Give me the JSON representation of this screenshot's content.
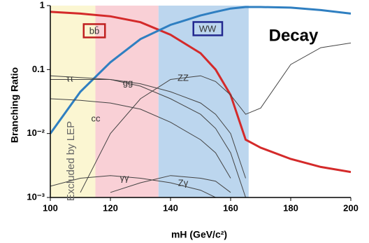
{
  "chart_data": {
    "type": "line",
    "title": "Decay",
    "ylabel": "Branching Ratio",
    "xlabel": "mH (GeV/c²)",
    "annotation": "Excluded by LEP",
    "log_y": true,
    "xlim": [
      100,
      200
    ],
    "xticks": [
      100,
      120,
      140,
      160,
      180,
      200
    ],
    "ylim": [
      0.001,
      1
    ],
    "yticks": [
      {
        "value": 0.001,
        "label": "10⁻³"
      },
      {
        "value": 0.01,
        "label": "10⁻²"
      },
      0.1,
      1
    ],
    "bands": [
      {
        "range": [
          100,
          115
        ],
        "color": "#fbf6d2"
      },
      {
        "range": [
          115,
          136
        ],
        "color": "#f9d0d6"
      },
      {
        "range": [
          136,
          166
        ],
        "color": "#bcd6ee"
      }
    ],
    "x": [
      100,
      110,
      120,
      130,
      140,
      150,
      155,
      160,
      165,
      170,
      180,
      190,
      200
    ],
    "series": [
      {
        "name": "bb̄",
        "color": "#d42a2a",
        "values": [
          0.8,
          0.75,
          0.68,
          0.55,
          0.35,
          0.18,
          0.1,
          0.04,
          0.008,
          0.006,
          0.004,
          0.003,
          0.0025
        ]
      },
      {
        "name": "WW",
        "color": "#2f7fc1",
        "values": [
          0.01,
          0.045,
          0.13,
          0.3,
          0.5,
          0.7,
          0.8,
          0.9,
          0.95,
          0.95,
          0.93,
          0.85,
          0.75
        ]
      },
      {
        "name": "ττ",
        "color": "#444444",
        "values": [
          0.08,
          0.075,
          0.07,
          0.055,
          0.035,
          0.02,
          0.012,
          0.005,
          0.001,
          null,
          null,
          null,
          null
        ]
      },
      {
        "name": "gg",
        "color": "#444444",
        "values": [
          0.07,
          0.07,
          0.07,
          0.06,
          0.045,
          0.03,
          0.02,
          0.01,
          0.002,
          null,
          null,
          null,
          null
        ]
      },
      {
        "name": "cc",
        "color": "#444444",
        "values": [
          0.035,
          0.033,
          0.03,
          0.024,
          0.015,
          0.008,
          0.005,
          0.002,
          null,
          null,
          null,
          null,
          null
        ]
      },
      {
        "name": "ZZ",
        "color": "#444444",
        "values": [
          null,
          0.0012,
          0.01,
          0.035,
          0.07,
          0.08,
          0.065,
          0.04,
          0.02,
          0.025,
          0.12,
          0.22,
          0.26
        ]
      },
      {
        "name": "γγ",
        "color": "#444444",
        "values": [
          0.0015,
          0.002,
          0.0022,
          0.002,
          0.0017,
          0.0013,
          0.001,
          null,
          null,
          null,
          null,
          null,
          null
        ]
      },
      {
        "name": "Zγ",
        "color": "#444444",
        "values": [
          null,
          null,
          0.0012,
          0.0017,
          0.0022,
          0.002,
          0.0018,
          0.0012,
          null,
          null,
          null,
          null,
          null
        ]
      }
    ]
  }
}
